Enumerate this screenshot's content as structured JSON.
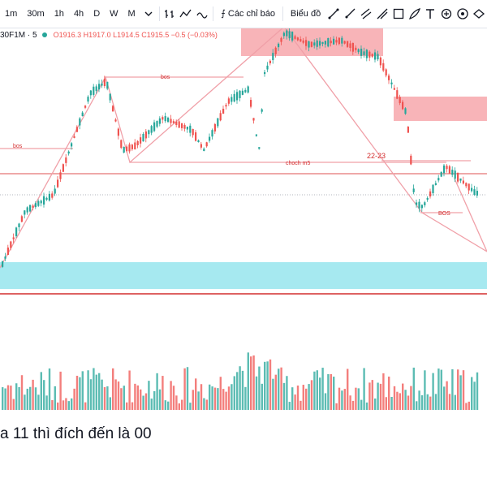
{
  "toolbar": {
    "timeframes": [
      "1m",
      "30m",
      "1h",
      "4h",
      "D",
      "W",
      "M"
    ],
    "indicators_label": "Các chỉ báo",
    "chart_type_label": "Biểu đồ",
    "icons": [
      "chevron-down-icon",
      "bar-style-icon",
      "line-style-icon",
      "indicator-fx-icon",
      "trend-line-icon",
      "ray-icon",
      "parallel-channel-icon",
      "pitchfork-icon",
      "rectangle-icon",
      "brush-icon",
      "text-icon",
      "price-range-icon",
      "ellipse-icon"
    ]
  },
  "legend": {
    "symbol": "30F1M · 5",
    "open": "O1916.3",
    "high": "H1917.0",
    "low": "L1914.5",
    "close": "C1915.5",
    "change": "−0.5 (−0.03%)"
  },
  "annotations": {
    "bos_top": "bos",
    "bos_left": "bos",
    "choch": "choch m5",
    "range": "22-23",
    "bos_right": "BOS"
  },
  "caption": "a 11 thì đích đến là 00",
  "colors": {
    "up": "#26a69a",
    "down": "#ef5350",
    "supply_zone": "#f7a7ab",
    "demand_zone": "#a6e9f0",
    "level_line": "#d32f2f",
    "drawing_line": "#f0a0a8"
  }
}
